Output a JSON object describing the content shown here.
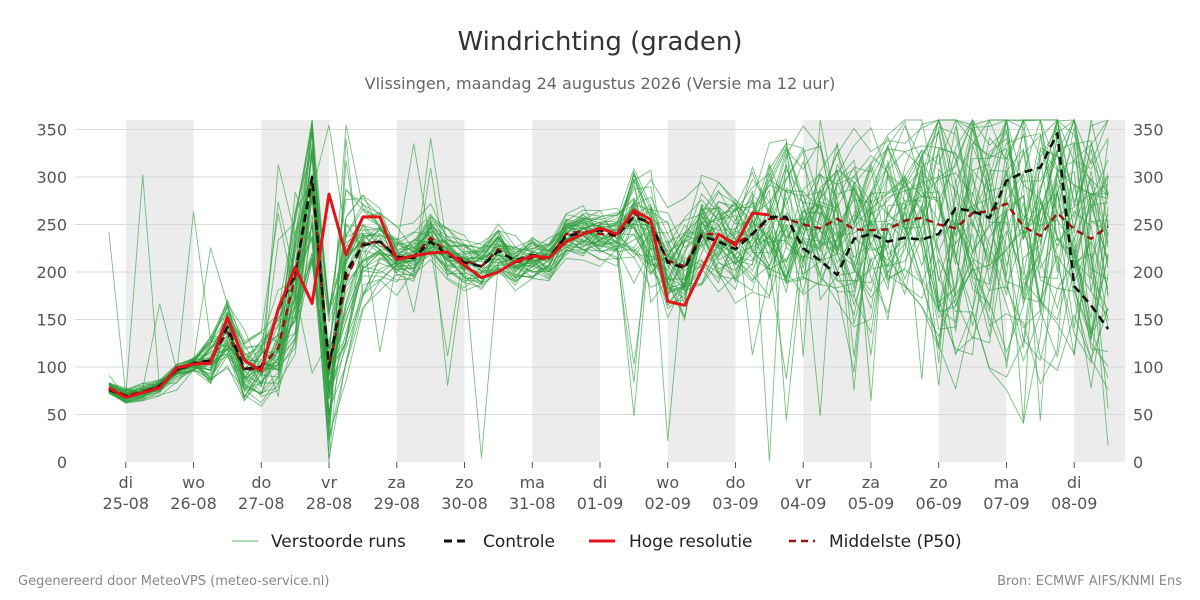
{
  "title": "Windrichting (graden)",
  "subtitle": "Vlissingen, maandag 24 augustus 2026 (Versie ma 12 uur)",
  "footer_left": "Gegenereerd door MeteoVPS (meteo-service.nl)",
  "footer_right": "Bron: ECMWF AIFS/KNMI Ens",
  "legend": [
    {
      "key": "ensemble",
      "label": "Verstoorde runs"
    },
    {
      "key": "control",
      "label": "Controle"
    },
    {
      "key": "hires",
      "label": "Hoge resolutie"
    },
    {
      "key": "median",
      "label": "Middelste (P50)"
    }
  ],
  "colors": {
    "ensemble": "#2e9e3e",
    "control": "#111111",
    "hires": "#e0141b",
    "median": "#a00f0f",
    "shade": "#ececec",
    "grid": "#d9d9d9"
  },
  "chart_data": {
    "type": "line",
    "x_unit": "days from 25-08 00h",
    "xlim": [
      -0.75,
      14.75
    ],
    "ylim": [
      0,
      360
    ],
    "yticks": [
      0,
      50,
      100,
      150,
      200,
      250,
      300,
      350
    ],
    "grid": "horizontal",
    "legend_position": "bottom",
    "shaded_days": [
      0,
      2,
      4,
      6,
      8,
      10,
      12,
      14
    ],
    "day_labels": [
      {
        "day": "di",
        "date": "25-08"
      },
      {
        "day": "wo",
        "date": "26-08"
      },
      {
        "day": "do",
        "date": "27-08"
      },
      {
        "day": "vr",
        "date": "28-08"
      },
      {
        "day": "za",
        "date": "29-08"
      },
      {
        "day": "zo",
        "date": "30-08"
      },
      {
        "day": "ma",
        "date": "31-08"
      },
      {
        "day": "di",
        "date": "01-09"
      },
      {
        "day": "wo",
        "date": "02-09"
      },
      {
        "day": "do",
        "date": "03-09"
      },
      {
        "day": "vr",
        "date": "04-09"
      },
      {
        "day": "za",
        "date": "05-09"
      },
      {
        "day": "zo",
        "date": "06-09"
      },
      {
        "day": "ma",
        "date": "07-09"
      },
      {
        "day": "di",
        "date": "08-09"
      }
    ],
    "series": [
      {
        "name": "Controle",
        "x": [
          -0.25,
          0,
          0.25,
          0.5,
          0.75,
          1,
          1.25,
          1.5,
          1.75,
          2,
          2.25,
          2.5,
          2.75,
          3,
          3.25,
          3.5,
          3.75,
          4,
          4.25,
          4.5,
          4.75,
          5,
          5.25,
          5.5,
          5.75,
          6,
          6.25,
          6.5,
          6.75,
          7,
          7.25,
          7.5,
          7.75,
          8,
          8.25,
          8.5,
          8.75,
          9,
          9.25,
          9.5,
          9.75,
          10,
          10.25,
          10.5,
          10.75,
          11,
          11.25,
          11.5,
          11.75,
          12,
          12.25,
          12.5,
          12.75,
          13,
          13.25,
          13.5,
          13.75,
          14,
          14.25,
          14.5
        ],
        "y": [
          76,
          69,
          73,
          80,
          97,
          104,
          107,
          142,
          98,
          100,
          160,
          198,
          300,
          100,
          200,
          228,
          232,
          216,
          215,
          232,
          218,
          210,
          206,
          222,
          212,
          218,
          215,
          238,
          241,
          244,
          238,
          258,
          252,
          210,
          204,
          238,
          232,
          224,
          240,
          258,
          258,
          225,
          212,
          197,
          235,
          240,
          232,
          236,
          234,
          240,
          267,
          264,
          257,
          296,
          305,
          310,
          346,
          185,
          165,
          140
        ]
      },
      {
        "name": "Hoge resolutie",
        "x": [
          -0.25,
          0,
          0.25,
          0.5,
          0.75,
          1,
          1.25,
          1.5,
          1.75,
          2,
          2.25,
          2.5,
          2.75,
          3,
          3.25,
          3.5,
          3.75,
          4,
          4.25,
          4.5,
          4.75,
          5,
          5.25,
          5.5,
          5.75,
          6,
          6.25,
          6.5,
          6.75,
          7,
          7.25,
          7.5,
          7.75,
          8,
          8.25,
          8.5,
          8.75,
          9,
          9.25,
          9.5
        ],
        "y": [
          78,
          68,
          73,
          78,
          99,
          103,
          104,
          152,
          107,
          96,
          161,
          205,
          167,
          282,
          218,
          258,
          258,
          213,
          217,
          220,
          221,
          207,
          194,
          200,
          211,
          217,
          215,
          232,
          240,
          246,
          240,
          265,
          255,
          169,
          165,
          202,
          240,
          228,
          262,
          260
        ]
      },
      {
        "name": "Middelste (P50)",
        "x": [
          -0.25,
          0,
          0.25,
          0.5,
          0.75,
          1,
          1.25,
          1.5,
          1.75,
          2,
          2.25,
          2.5,
          2.75,
          3,
          3.25,
          3.5,
          3.75,
          4,
          4.25,
          4.5,
          4.75,
          5,
          5.25,
          5.5,
          5.75,
          6,
          6.25,
          6.5,
          6.75,
          7,
          7.25,
          7.5,
          7.75,
          8,
          8.25,
          8.5,
          8.75,
          9,
          9.25,
          9.5,
          9.75,
          10,
          10.25,
          10.5,
          10.75,
          11,
          11.25,
          11.5,
          11.75,
          12,
          12.25,
          12.5,
          12.75,
          13,
          13.25,
          13.5,
          13.75,
          14,
          14.25,
          14.5
        ],
        "y": [
          78,
          70,
          74,
          80,
          96,
          103,
          107,
          137,
          96,
          100,
          120,
          196,
          298,
          98,
          192,
          230,
          232,
          215,
          216,
          236,
          220,
          212,
          206,
          224,
          210,
          215,
          214,
          240,
          243,
          240,
          238,
          262,
          250,
          212,
          206,
          240,
          240,
          230,
          240,
          256,
          256,
          250,
          246,
          256,
          245,
          244,
          245,
          254,
          257,
          250,
          246,
          262,
          264,
          272,
          248,
          238,
          262,
          245,
          235,
          248
        ]
      }
    ],
    "ensemble_members": 50
  }
}
